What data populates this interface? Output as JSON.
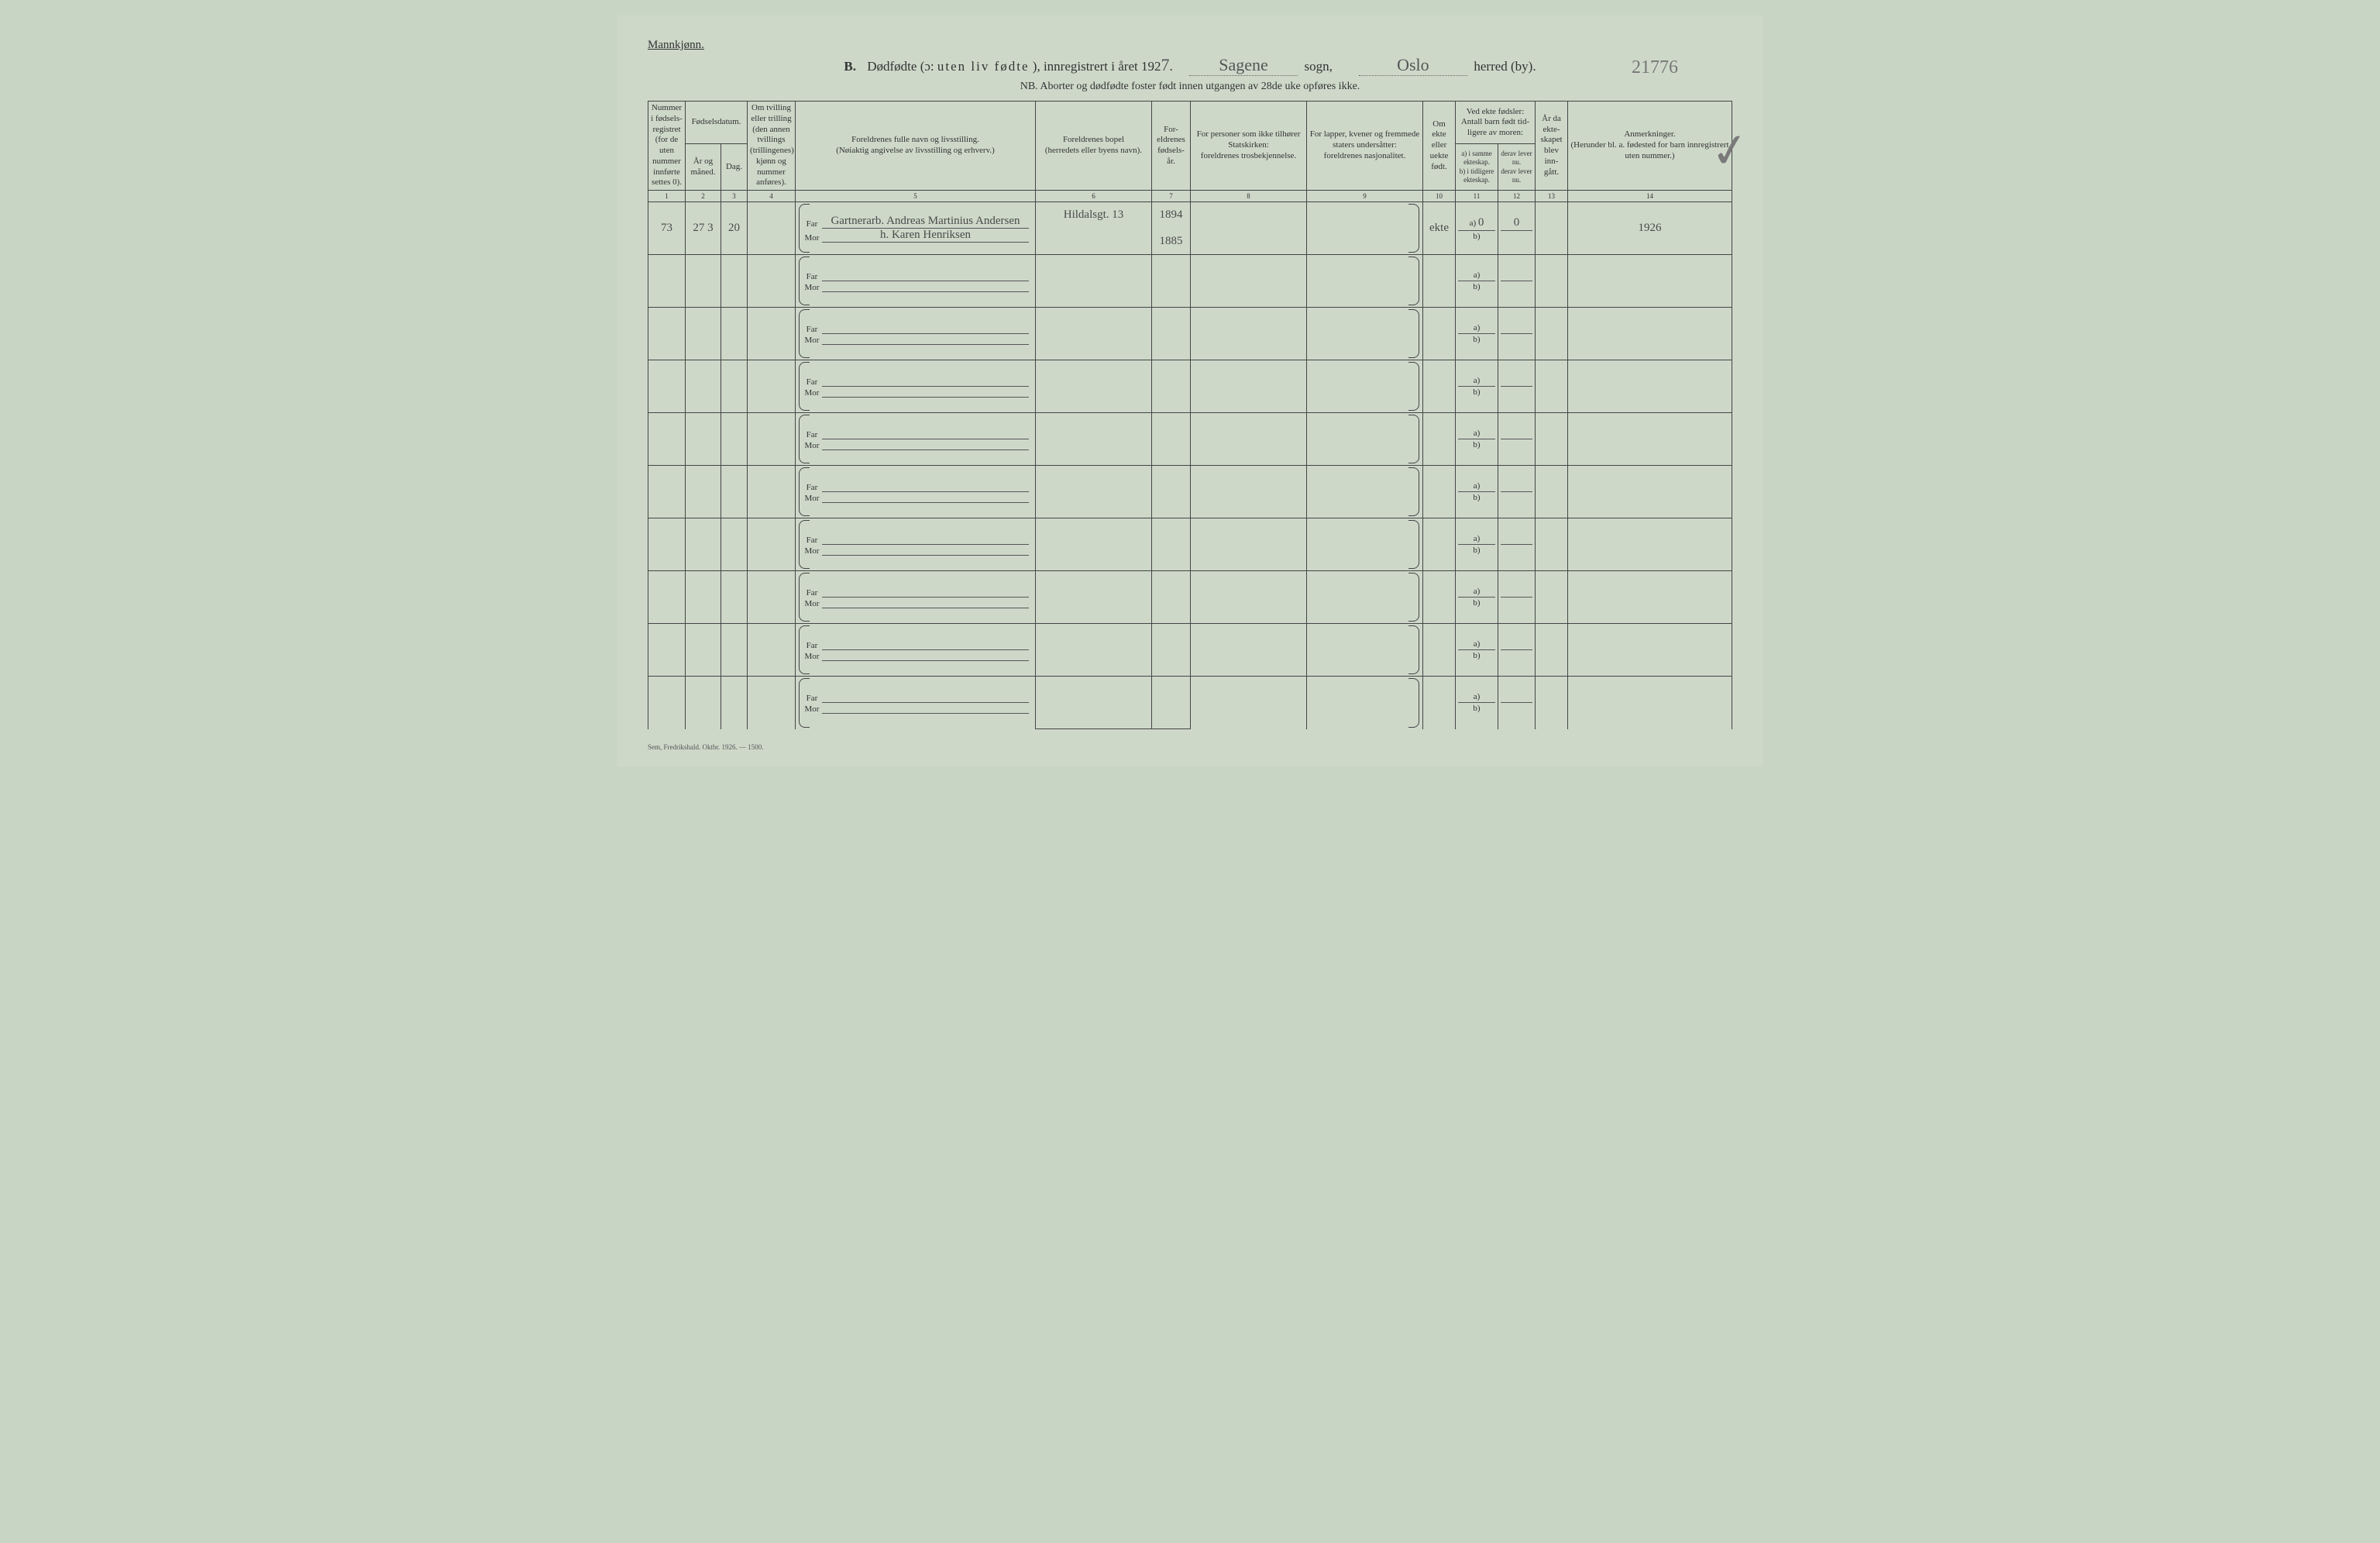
{
  "header": {
    "gender": "Mannkjønn.",
    "section_label": "B.",
    "title_prefix": "Dødfødte (ɔ:",
    "title_spaced": "uten liv fødte",
    "title_suffix": "), innregistrert i året 192",
    "year_digit_hand": "7",
    "period": ".",
    "sogn_hand": "Sagene",
    "sogn_label": "sogn,",
    "herred_hand": "Oslo",
    "herred_label": "herred (by).",
    "ref_hand": "21776",
    "nb": "NB.  Aborter og dødfødte foster født innen utgangen av 28de uke opføres ikke."
  },
  "columns": {
    "c1": "Nummer i fødsels-registret (for de uten nummer innførte settes 0).",
    "c23_group": "Fødselsdatum.",
    "c2": "År og måned.",
    "c3": "Dag.",
    "c4": "Om tvilling eller trilling (den annen tvillings (trillingenes) kjønn og nummer anføres).",
    "c5": "Foreldrenes fulle navn og livsstilling.\n(Nøiaktig angivelse av livsstilling og erhverv.)",
    "c6": "Foreldrenes bopel\n(herredets eller byens navn).",
    "c7": "For-eldrenes fødsels-år.",
    "c8": "For personer som ikke tilhører Statskirken:\nforeldrenes trosbekjennelse.",
    "c9": "For lapper, kvener og fremmede staters undersåtter:\nforeldrenes nasjonalitet.",
    "c10": "Om ekte eller uekte født.",
    "c1112_group": "Ved ekte fødsler:\nAntall barn født tid-ligere av moren:",
    "c11": "a) i samme ekteskap.\nb) i tidligere ekteskap.",
    "c12": "derav lever nu.\nderav lever nu.",
    "c13": "År da ekte-skapet blev inn-gått.",
    "c14": "Anmerkninger.\n(Herunder bl. a. fødested for barn innregistrert uten nummer.)"
  },
  "colnums": [
    "1",
    "2",
    "3",
    "4",
    "5",
    "6",
    "7",
    "8",
    "9",
    "10",
    "11",
    "12",
    "13",
    "14"
  ],
  "labels": {
    "far": "Far",
    "mor": "Mor",
    "a": "a)",
    "b": "b)"
  },
  "rows": [
    {
      "num": "73",
      "ym": "27   3",
      "day": "20",
      "twin": "",
      "far_name": "Gartnerarb. Andreas Martinius Andersen",
      "mor_name": "h. Karen Henriksen",
      "far_bopel": "Hildalsgt. 13",
      "mor_bopel": "",
      "far_year": "1894",
      "mor_year": "1885",
      "c8": "",
      "c9": "",
      "ekte": "ekte",
      "a_same": "0",
      "a_prev": "",
      "derav_a": "0",
      "derav_b": "",
      "year_marr": "",
      "remarks": "1926"
    },
    {
      "num": "",
      "ym": "",
      "day": "",
      "twin": "",
      "far_name": "",
      "mor_name": "",
      "far_bopel": "",
      "mor_bopel": "",
      "far_year": "",
      "mor_year": "",
      "c8": "",
      "c9": "",
      "ekte": "",
      "a_same": "",
      "a_prev": "",
      "derav_a": "",
      "derav_b": "",
      "year_marr": "",
      "remarks": ""
    },
    {
      "num": "",
      "ym": "",
      "day": "",
      "twin": "",
      "far_name": "",
      "mor_name": "",
      "far_bopel": "",
      "mor_bopel": "",
      "far_year": "",
      "mor_year": "",
      "c8": "",
      "c9": "",
      "ekte": "",
      "a_same": "",
      "a_prev": "",
      "derav_a": "",
      "derav_b": "",
      "year_marr": "",
      "remarks": ""
    },
    {
      "num": "",
      "ym": "",
      "day": "",
      "twin": "",
      "far_name": "",
      "mor_name": "",
      "far_bopel": "",
      "mor_bopel": "",
      "far_year": "",
      "mor_year": "",
      "c8": "",
      "c9": "",
      "ekte": "",
      "a_same": "",
      "a_prev": "",
      "derav_a": "",
      "derav_b": "",
      "year_marr": "",
      "remarks": ""
    },
    {
      "num": "",
      "ym": "",
      "day": "",
      "twin": "",
      "far_name": "",
      "mor_name": "",
      "far_bopel": "",
      "mor_bopel": "",
      "far_year": "",
      "mor_year": "",
      "c8": "",
      "c9": "",
      "ekte": "",
      "a_same": "",
      "a_prev": "",
      "derav_a": "",
      "derav_b": "",
      "year_marr": "",
      "remarks": ""
    },
    {
      "num": "",
      "ym": "",
      "day": "",
      "twin": "",
      "far_name": "",
      "mor_name": "",
      "far_bopel": "",
      "mor_bopel": "",
      "far_year": "",
      "mor_year": "",
      "c8": "",
      "c9": "",
      "ekte": "",
      "a_same": "",
      "a_prev": "",
      "derav_a": "",
      "derav_b": "",
      "year_marr": "",
      "remarks": ""
    },
    {
      "num": "",
      "ym": "",
      "day": "",
      "twin": "",
      "far_name": "",
      "mor_name": "",
      "far_bopel": "",
      "mor_bopel": "",
      "far_year": "",
      "mor_year": "",
      "c8": "",
      "c9": "",
      "ekte": "",
      "a_same": "",
      "a_prev": "",
      "derav_a": "",
      "derav_b": "",
      "year_marr": "",
      "remarks": ""
    },
    {
      "num": "",
      "ym": "",
      "day": "",
      "twin": "",
      "far_name": "",
      "mor_name": "",
      "far_bopel": "",
      "mor_bopel": "",
      "far_year": "",
      "mor_year": "",
      "c8": "",
      "c9": "",
      "ekte": "",
      "a_same": "",
      "a_prev": "",
      "derav_a": "",
      "derav_b": "",
      "year_marr": "",
      "remarks": ""
    },
    {
      "num": "",
      "ym": "",
      "day": "",
      "twin": "",
      "far_name": "",
      "mor_name": "",
      "far_bopel": "",
      "mor_bopel": "",
      "far_year": "",
      "mor_year": "",
      "c8": "",
      "c9": "",
      "ekte": "",
      "a_same": "",
      "a_prev": "",
      "derav_a": "",
      "derav_b": "",
      "year_marr": "",
      "remarks": ""
    },
    {
      "num": "",
      "ym": "",
      "day": "",
      "twin": "",
      "far_name": "",
      "mor_name": "",
      "far_bopel": "",
      "mor_bopel": "",
      "far_year": "",
      "mor_year": "",
      "c8": "",
      "c9": "",
      "ekte": "",
      "a_same": "",
      "a_prev": "",
      "derav_a": "",
      "derav_b": "",
      "year_marr": "",
      "remarks": ""
    }
  ],
  "footer": "Sem, Fredrikshald. Oktbr. 1926. — 1500.",
  "checkmark": "✓"
}
